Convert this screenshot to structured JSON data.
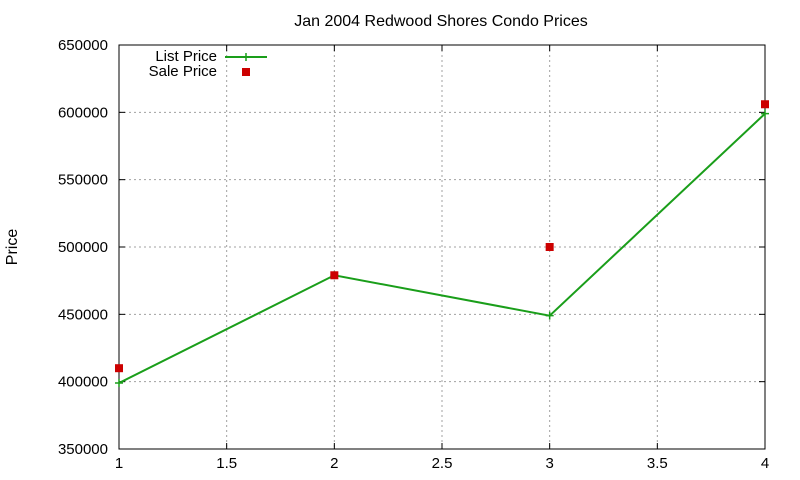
{
  "chart_data": {
    "type": "line",
    "title": "Jan 2004 Redwood Shores Condo Prices",
    "xlabel": "",
    "ylabel": "Price",
    "xlim": [
      1,
      4
    ],
    "ylim": [
      350000,
      650000
    ],
    "x_ticks": [
      1,
      1.5,
      2,
      2.5,
      3,
      3.5,
      4
    ],
    "x_tick_labels": [
      "1",
      "1.5",
      "2",
      "2.5",
      "3",
      "3.5",
      "4"
    ],
    "y_ticks": [
      350000,
      400000,
      450000,
      500000,
      550000,
      600000,
      650000
    ],
    "y_tick_labels": [
      "350000",
      "400000",
      "450000",
      "500000",
      "550000",
      "600000",
      "650000"
    ],
    "grid": true,
    "legend_position": "top-left",
    "series": [
      {
        "name": "List Price",
        "style": "line-with-plus-markers",
        "color": "#1a9e1a",
        "x": [
          1,
          2,
          3,
          4
        ],
        "y": [
          399000,
          479000,
          449000,
          599000
        ]
      },
      {
        "name": "Sale Price",
        "style": "square-markers",
        "color": "#cc0000",
        "x": [
          1,
          2,
          3,
          4
        ],
        "y": [
          410000,
          479000,
          500000,
          606000
        ]
      }
    ]
  }
}
